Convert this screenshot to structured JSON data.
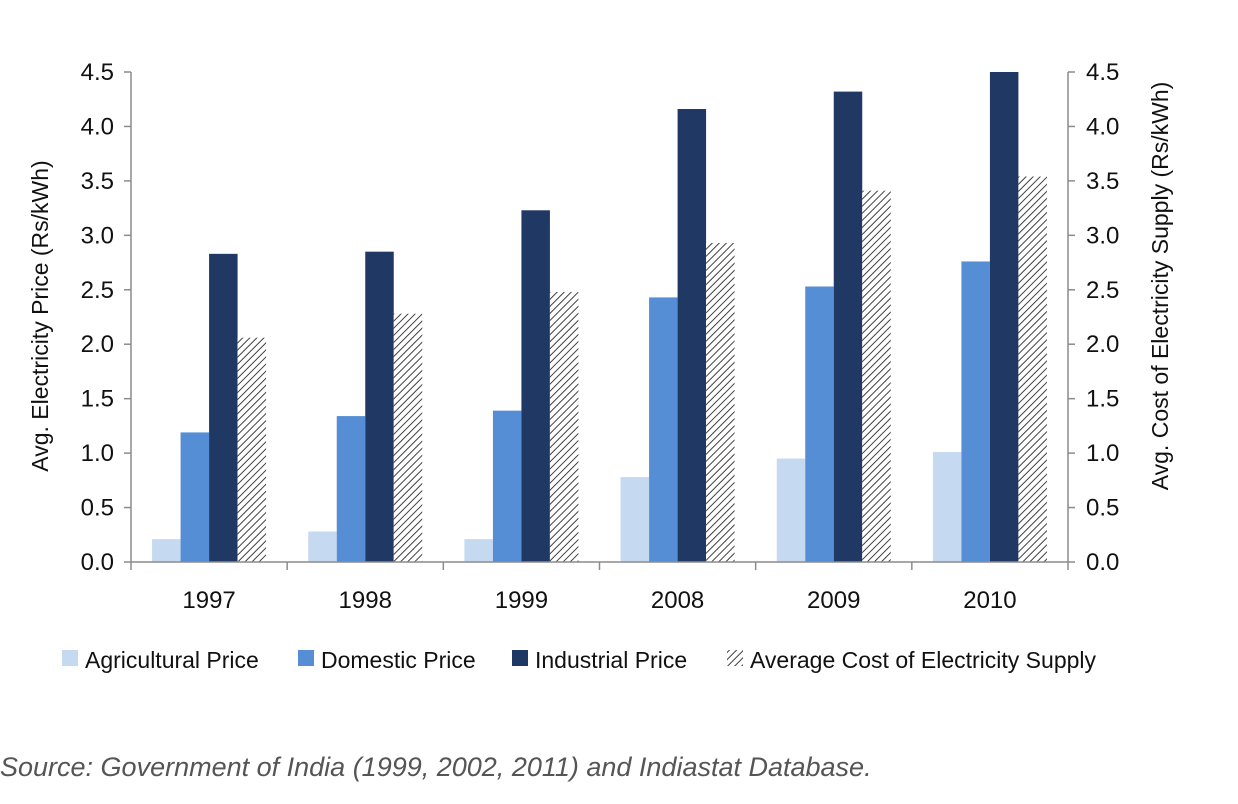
{
  "chart_data": {
    "type": "bar",
    "categories": [
      "1997",
      "1998",
      "1999",
      "2008",
      "2009",
      "2010"
    ],
    "series": [
      {
        "name": "Agricultural Price",
        "color": "#c5d9f1",
        "pattern": "solid",
        "values": [
          0.21,
          0.28,
          0.21,
          0.78,
          0.95,
          1.01
        ]
      },
      {
        "name": "Domestic Price",
        "color": "#558ed5",
        "pattern": "solid",
        "values": [
          1.19,
          1.34,
          1.39,
          2.43,
          2.53,
          2.76
        ]
      },
      {
        "name": "Industrial Price",
        "color": "#1f3864",
        "pattern": "solid",
        "values": [
          2.83,
          2.85,
          3.23,
          4.16,
          4.32,
          4.5
        ]
      },
      {
        "name": "Average Cost of Electricity Supply",
        "color": "#404040",
        "pattern": "diagonal-hatch",
        "values": [
          2.06,
          2.28,
          2.48,
          2.93,
          3.41,
          3.54
        ]
      }
    ],
    "ylabel": "Avg.  Electricity Price (Rs/kWh)",
    "y2label": "Avg. Cost of Electricity Supply (Rs/kWh)",
    "ylim": [
      0,
      4.5
    ],
    "y2lim": [
      0,
      4.5
    ],
    "yticks": [
      "0.0",
      "0.5",
      "1.0",
      "1.5",
      "2.0",
      "2.5",
      "3.0",
      "3.5",
      "4.0",
      "4.5"
    ],
    "grid": false,
    "legend_position": "bottom"
  },
  "source_note": "Source: Government of India (1999, 2002, 2011) and Indiastat Database."
}
